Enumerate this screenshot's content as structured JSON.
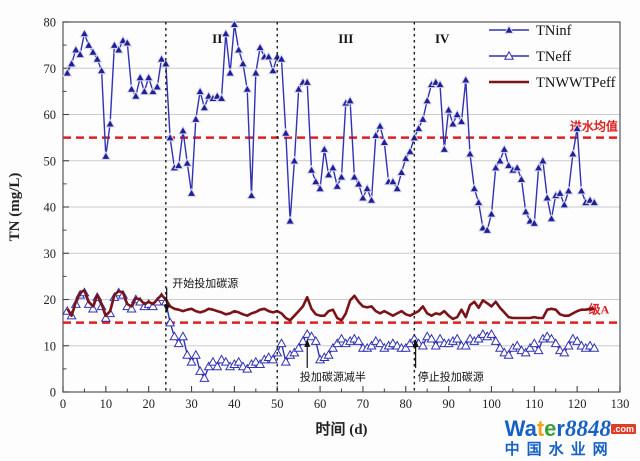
{
  "watermark": {
    "letters": [
      {
        "ch": "W",
        "color": "#1660c6"
      },
      {
        "ch": "a",
        "color": "#1660c6"
      },
      {
        "ch": "t",
        "color": "#f0a21a"
      },
      {
        "ch": "e",
        "color": "#3aa13a"
      },
      {
        "ch": "r",
        "color": "#1660c6"
      }
    ],
    "number": "8848",
    "tld": ".com",
    "site_name": "中国水业网"
  },
  "chart_data": {
    "type": "line",
    "title": "",
    "xlabel": "时间 (d)",
    "ylabel": "TN (mg/L)",
    "xlim": [
      0,
      130
    ],
    "ylim": [
      0,
      80
    ],
    "xticks": [
      0,
      10,
      20,
      30,
      40,
      50,
      60,
      70,
      80,
      90,
      100,
      110,
      120,
      130
    ],
    "yticks": [
      0,
      10,
      20,
      30,
      40,
      50,
      60,
      70,
      80
    ],
    "minor_tick_step": 5,
    "grid": "horizontal-major",
    "legend_position": "top-right-inside",
    "x": [
      1,
      2,
      3,
      4,
      5,
      6,
      7,
      8,
      9,
      10,
      11,
      12,
      13,
      14,
      15,
      16,
      17,
      18,
      19,
      20,
      21,
      22,
      23,
      24,
      25,
      26,
      27,
      28,
      29,
      30,
      31,
      32,
      33,
      34,
      35,
      36,
      37,
      38,
      39,
      40,
      41,
      42,
      43,
      44,
      45,
      46,
      47,
      48,
      49,
      50,
      51,
      52,
      53,
      54,
      55,
      56,
      57,
      58,
      59,
      60,
      61,
      62,
      63,
      64,
      65,
      66,
      67,
      68,
      69,
      70,
      71,
      72,
      73,
      74,
      75,
      76,
      77,
      78,
      79,
      80,
      81,
      82,
      83,
      84,
      85,
      86,
      87,
      88,
      89,
      90,
      91,
      92,
      93,
      94,
      95,
      96,
      97,
      98,
      99,
      100,
      101,
      102,
      103,
      104,
      105,
      106,
      107,
      108,
      109,
      110,
      111,
      112,
      113,
      114,
      115,
      116,
      117,
      118,
      119,
      120,
      121,
      122,
      123,
      124
    ],
    "series": [
      {
        "name": "TNeff",
        "line_color": "#3232b4",
        "marker": "open-triangle",
        "marker_fill": "#ffffff",
        "marker_edge": "#3232b4",
        "line_width": 1.4,
        "values": [
          17.5,
          16.5,
          19,
          21,
          21.5,
          19,
          18,
          20.5,
          18.5,
          16,
          17,
          20.5,
          21.5,
          21,
          18.5,
          18,
          20,
          19.5,
          18.5,
          19,
          18.5,
          19.5,
          20.5,
          19.5,
          15,
          12,
          10.5,
          12,
          8,
          6.5,
          8,
          4.5,
          3,
          5.5,
          6.5,
          5.5,
          7,
          6.5,
          5.5,
          6,
          6.5,
          5.5,
          5,
          6,
          6.5,
          6,
          7,
          7.5,
          7,
          8.5,
          10.5,
          6.5,
          8,
          8.5,
          9.5,
          11,
          12.5,
          12,
          11,
          7,
          7.5,
          8,
          9.5,
          10.5,
          11.5,
          10.5,
          11,
          11.5,
          11,
          9.5,
          9.5,
          10,
          11,
          10.5,
          9.5,
          10,
          10.5,
          10,
          9.5,
          9.5,
          10.5,
          11.5,
          10.5,
          10,
          12,
          11.5,
          10,
          11.5,
          10.5,
          10.5,
          11,
          11.5,
          10,
          10,
          11.5,
          11,
          11.5,
          12.5,
          12,
          12.5,
          11,
          9.5,
          8.5,
          8,
          9.5,
          10,
          9,
          8.5,
          9.5,
          10.5,
          9,
          11.5,
          12,
          11.5,
          10.5,
          9,
          8.5,
          10,
          11.5,
          11,
          10,
          9.5,
          10,
          9.5
        ]
      },
      {
        "name": "TNinf",
        "line_color": "#3232b4",
        "marker": "filled-triangle",
        "marker_fill": "#1f1f96",
        "marker_edge": "#d8d8f0",
        "line_width": 1.4,
        "values": [
          69,
          71,
          74,
          73,
          77.5,
          75,
          73.5,
          72,
          69.5,
          51,
          58,
          75,
          74,
          76,
          75.5,
          65.5,
          64,
          68,
          65,
          68,
          65,
          66,
          72,
          71,
          55,
          48.5,
          49,
          56.5,
          49.5,
          43,
          59,
          65,
          61.5,
          64,
          63.5,
          64,
          63.5,
          77.5,
          69,
          79.5,
          74,
          71,
          65.5,
          42.5,
          69,
          74.5,
          72.5,
          72.5,
          69.5,
          72.5,
          72,
          56,
          37,
          50,
          65.5,
          67,
          67,
          48,
          45.5,
          44,
          52.5,
          47,
          48.5,
          44.5,
          46.5,
          62.5,
          63,
          46.5,
          45,
          42,
          44,
          41.5,
          55.5,
          57.5,
          54,
          45.5,
          45.5,
          44,
          47.5,
          50.5,
          52,
          55,
          57,
          59,
          63,
          66.5,
          67,
          66.5,
          52.5,
          61,
          58,
          60,
          58.5,
          67.5,
          51.5,
          44,
          41,
          35.5,
          35,
          38.5,
          48.5,
          50,
          52.5,
          49,
          48,
          48.5,
          46,
          39,
          37,
          36.5,
          48.5,
          50,
          42,
          37.5,
          42.5,
          43,
          40.5,
          43.5,
          51.5,
          57,
          43.5,
          41,
          41.5,
          41
        ]
      },
      {
        "name": "TNWWTPeff",
        "line_color": "#7a1418",
        "marker": "none",
        "line_width": 2.6,
        "values": [
          18,
          16.5,
          19.5,
          21.5,
          22,
          19.5,
          18.5,
          21,
          19,
          16.5,
          17.5,
          21,
          21.8,
          21.5,
          19,
          18.5,
          20.3,
          20,
          19,
          19.5,
          19,
          20,
          21,
          20,
          18.5,
          18,
          17.8,
          17.5,
          17.8,
          18,
          17.5,
          17.2,
          17.5,
          18,
          17.8,
          17.5,
          17.2,
          16.8,
          17,
          17.5,
          17.2,
          16.8,
          16.5,
          17,
          17.3,
          17.8,
          18,
          17.5,
          17.2,
          17.5,
          17,
          16,
          15.5,
          16.5,
          17.5,
          18.5,
          20.5,
          18,
          16.8,
          16.5,
          16.5,
          17.5,
          17.8,
          16,
          15.5,
          17,
          19.8,
          20.8,
          19.5,
          18.5,
          18.3,
          18.5,
          17.5,
          17,
          17.5,
          17,
          16.5,
          17,
          17.5,
          16.8,
          16.5,
          17,
          17.5,
          18.5,
          17,
          16.5,
          17,
          16.8,
          17.5,
          16.5,
          15.8,
          16.2,
          17.8,
          16.2,
          18.8,
          19.5,
          18.2,
          19.8,
          19.2,
          18.5,
          19.5,
          18.2,
          17.2,
          16.2,
          16,
          16,
          16,
          16,
          16,
          16.2,
          16,
          16,
          17.8,
          18,
          17.8,
          16.8,
          16.5,
          16.5,
          17,
          17.5,
          17.8,
          17.8,
          18,
          18
        ]
      }
    ],
    "reference_lines": [
      {
        "id": "influent-mean",
        "label": "进水均值",
        "value": 55,
        "color": "#e02020",
        "style": "dashed",
        "label_x": 129.5,
        "label_dy": -7
      },
      {
        "id": "grade-A",
        "label": "级A",
        "value": 15,
        "color": "#e02020",
        "style": "dashed",
        "label_x": 127.5,
        "label_dy": -9
      }
    ],
    "phase_dividers": [
      24,
      50,
      82
    ],
    "phase_labels": [
      {
        "text": "II",
        "x": 36,
        "y": 75.5
      },
      {
        "text": "III",
        "x": 66,
        "y": 75.5
      },
      {
        "text": "IV",
        "x": 88.5,
        "y": 75.5
      }
    ],
    "annotations": [
      {
        "id": "start-carbon",
        "text": "开始投加碳源",
        "text_x": 25.5,
        "text_y": 23.6,
        "anchor": "start",
        "arrow_x": 24.2,
        "arrow_from": 22.6,
        "arrow_to": 18.2,
        "dir": "down"
      },
      {
        "id": "half-carbon",
        "text": "投加碳源减半",
        "text_x": 63,
        "text_y": 3.4,
        "anchor": "middle",
        "arrow_x": 57,
        "arrow_from": 5.2,
        "arrow_to": 10.4,
        "dir": "up"
      },
      {
        "id": "stop-carbon",
        "text": "停止投加碳源",
        "text_x": 90.5,
        "text_y": 3.4,
        "anchor": "middle",
        "arrow_x": 82.3,
        "arrow_from": 5.2,
        "arrow_to": 10.4,
        "dir": "up"
      }
    ]
  }
}
